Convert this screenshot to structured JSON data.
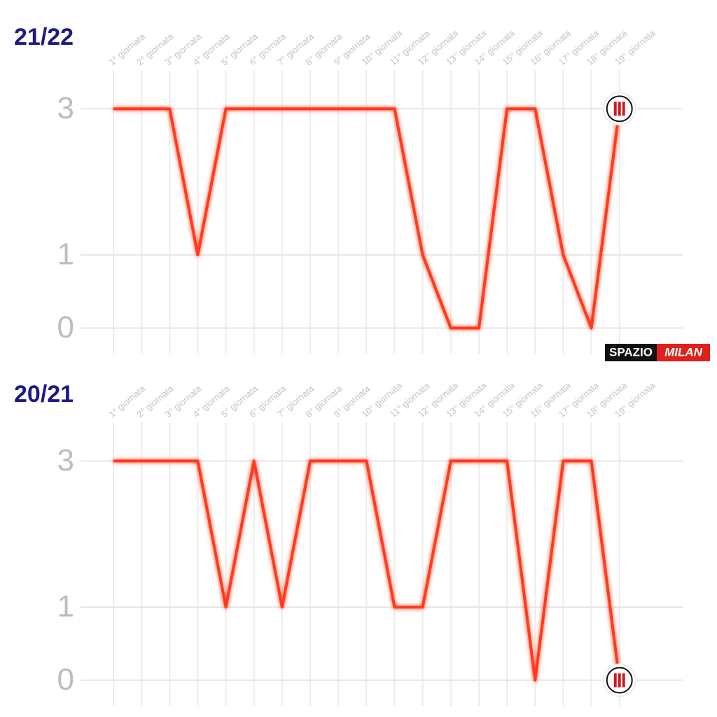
{
  "chart_data": [
    {
      "type": "line",
      "title": "21/22",
      "categories": [
        "1° giornata",
        "2° giornata",
        "3° giornata",
        "4° giornata",
        "5° giornata",
        "6° giornata",
        "7° giornata",
        "8° giornata",
        "9° giornata",
        "10° giornata",
        "11° giornata",
        "12° giornata",
        "13° giornata",
        "14° giornata",
        "15° giornata",
        "16° giornata",
        "17° giornata",
        "18° giornata",
        "19° giornata"
      ],
      "values": [
        3,
        3,
        3,
        1,
        3,
        3,
        3,
        3,
        3,
        3,
        3,
        1,
        0,
        0,
        3,
        3,
        1,
        0,
        3
      ],
      "color": "#ff3a1c",
      "ylim": [
        -0.35,
        3.53
      ],
      "yticks": [
        0,
        1,
        3
      ],
      "grid": true
    },
    {
      "type": "line",
      "title": "20/21",
      "categories": [
        "1° giornata",
        "2° giornata",
        "3° giornata",
        "4° giornata",
        "5° giornata",
        "6° giornata",
        "7° giornata",
        "8° giornata",
        "9° giornata",
        "10° giornata",
        "11° giornata",
        "12° giornata",
        "13° giornata",
        "14° giornata",
        "15° giornata",
        "16° giornata",
        "17° giornata",
        "18° giornata",
        "19° giornata"
      ],
      "values": [
        3,
        3,
        3,
        3,
        1,
        3,
        1,
        3,
        3,
        3,
        1,
        1,
        3,
        3,
        3,
        0,
        3,
        3,
        0
      ],
      "color": "#ff3a1c",
      "ylim": [
        -0.35,
        3.53
      ],
      "yticks": [
        0,
        1,
        3
      ],
      "grid": true
    }
  ],
  "watermark": {
    "left": "SPAZIO",
    "right": "MILAN"
  }
}
